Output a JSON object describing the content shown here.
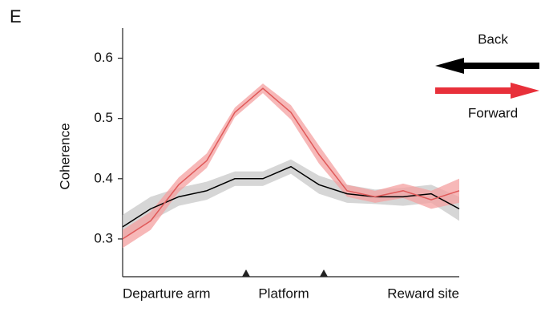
{
  "chart_data": {
    "type": "line",
    "panel_label": "E",
    "y_label": "Coherence",
    "categories": [
      null,
      null,
      null,
      null,
      null,
      null,
      null,
      null,
      null,
      null,
      null,
      null,
      null
    ],
    "ylim": [
      0.24,
      0.65
    ],
    "yticks": [
      0.3,
      0.4,
      0.5,
      0.6
    ],
    "region_labels": [
      "Departure arm",
      "Platform",
      "Reward site"
    ],
    "series": [
      {
        "name": "Back",
        "color": "#000000",
        "band_color": "#c8c8c8",
        "values": [
          0.32,
          0.35,
          0.37,
          0.38,
          0.4,
          0.4,
          0.42,
          0.39,
          0.375,
          0.37,
          0.37,
          0.375,
          0.35
        ],
        "errors": [
          0.02,
          0.02,
          0.015,
          0.015,
          0.012,
          0.012,
          0.012,
          0.015,
          0.015,
          0.012,
          0.015,
          0.015,
          0.02
        ]
      },
      {
        "name": "Forward",
        "color": "#e05a5a",
        "band_color": "#f4a0a0",
        "values": [
          0.3,
          0.33,
          0.39,
          0.43,
          0.51,
          0.55,
          0.51,
          0.44,
          0.38,
          0.37,
          0.38,
          0.365,
          0.38
        ],
        "errors": [
          0.015,
          0.015,
          0.012,
          0.012,
          0.008,
          0.008,
          0.012,
          0.015,
          0.01,
          0.01,
          0.012,
          0.015,
          0.02
        ]
      }
    ]
  }
}
